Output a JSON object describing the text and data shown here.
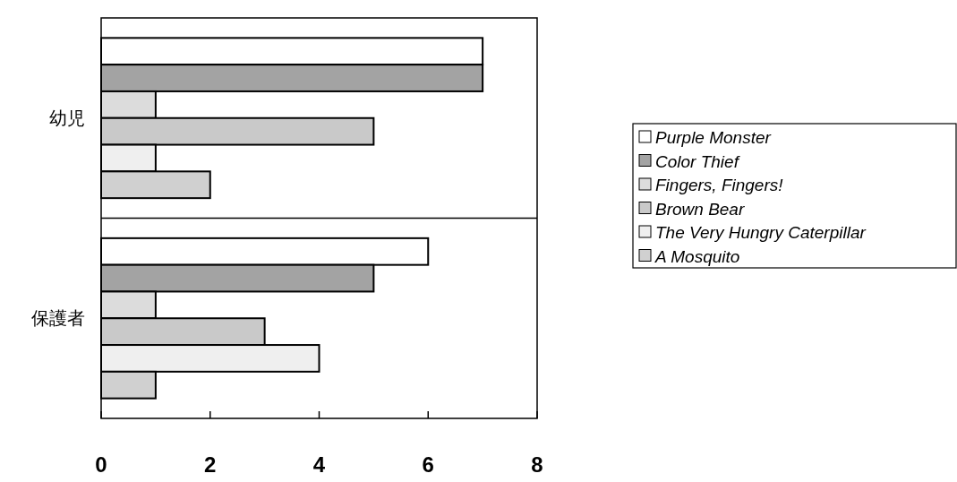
{
  "chart_data": {
    "type": "bar",
    "orientation": "horizontal",
    "categories": [
      "幼児",
      "保護者"
    ],
    "series": [
      {
        "name": "*Purple Monster*",
        "color": "#ffffff",
        "values": [
          7,
          6
        ]
      },
      {
        "name": "*Color Thief*",
        "color": "#a3a3a3",
        "values": [
          7,
          5
        ]
      },
      {
        "name": "*Fingers, Fingers!*",
        "color": "#dcdcdc",
        "values": [
          1,
          1
        ]
      },
      {
        "name": "*Brown Bear*",
        "color": "#c9c9c9",
        "values": [
          5,
          3
        ]
      },
      {
        "name": "*The Very Hungry Caterpillar*",
        "color": "#efefef",
        "values": [
          1,
          4
        ]
      },
      {
        "name": "*A Mosquito*",
        "color": "#d0d0d0",
        "values": [
          2,
          1
        ]
      }
    ],
    "xlim": [
      0,
      8
    ],
    "xticks": [
      0,
      2,
      4,
      6,
      8
    ],
    "grid": "y",
    "legend": "right"
  }
}
